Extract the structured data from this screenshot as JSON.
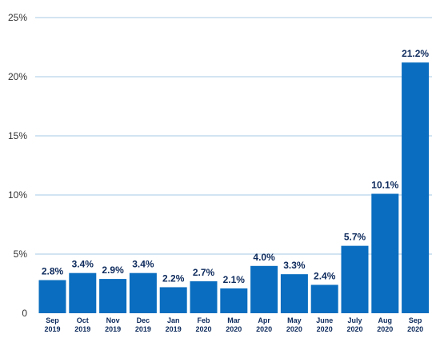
{
  "chart_data": {
    "type": "bar",
    "categories": [
      [
        "Sep",
        "2019"
      ],
      [
        "Oct",
        "2019"
      ],
      [
        "Nov",
        "2019"
      ],
      [
        "Dec",
        "2019"
      ],
      [
        "Jan",
        "2019"
      ],
      [
        "Feb",
        "2020"
      ],
      [
        "Mar",
        "2020"
      ],
      [
        "Apr",
        "2020"
      ],
      [
        "May",
        "2020"
      ],
      [
        "June",
        "2020"
      ],
      [
        "July",
        "2020"
      ],
      [
        "Aug",
        "2020"
      ],
      [
        "Sep",
        "2020"
      ]
    ],
    "values": [
      2.8,
      3.4,
      2.9,
      3.4,
      2.2,
      2.7,
      2.1,
      4.0,
      3.3,
      2.4,
      5.7,
      10.1,
      21.2
    ],
    "data_labels": [
      "2.8%",
      "3.4%",
      "2.9%",
      "3.4%",
      "2.2%",
      "2.7%",
      "2.1%",
      "4.0%",
      "3.3%",
      "2.4%",
      "5.7%",
      "10.1%",
      "21.2%"
    ],
    "title": "",
    "xlabel": "",
    "ylabel": "",
    "ylim": [
      0,
      25
    ],
    "yticks": [
      0,
      5,
      10,
      15,
      20,
      25
    ],
    "ytick_labels": [
      "0",
      "5%",
      "10%",
      "15%",
      "20%",
      "25%"
    ],
    "grid": true,
    "bar_color": "#0a6dbf",
    "grid_color": "#b7d3ea",
    "label_color": "#0d2a5c"
  }
}
